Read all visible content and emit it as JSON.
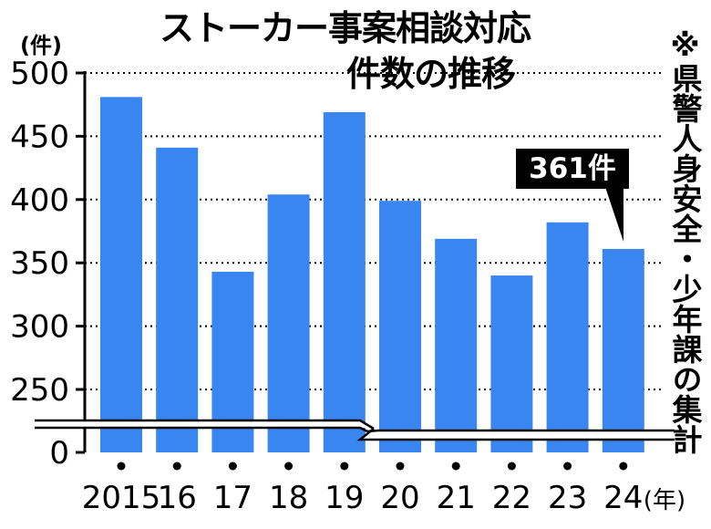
{
  "title": {
    "line1": "ストーカー事案相談対応",
    "line2": "件数の推移"
  },
  "unit": "(件)",
  "note": "※県警人身安全・少年課の集計",
  "callout": "361件",
  "colors": {
    "bar": "#3a86f0",
    "axis": "#000000",
    "grid": "#000000",
    "background": "#ffffff"
  },
  "chart_data": {
    "type": "bar",
    "categories": [
      "2015",
      "16",
      "17",
      "18",
      "19",
      "20",
      "21",
      "22",
      "23",
      "24"
    ],
    "x_unit": "(年)",
    "values": [
      481,
      441,
      343,
      404,
      469,
      399,
      369,
      340,
      382,
      361
    ],
    "yticks": [
      0,
      250,
      300,
      350,
      400,
      450,
      500
    ],
    "ylim": [
      0,
      500
    ],
    "axis_break": "0–250",
    "grid": "dotted horizontal",
    "title": "ストーカー事案相談対応件数の推移",
    "ylabel": "(件)",
    "xlabel": "(年)",
    "annotation": {
      "category": "24",
      "text": "361件"
    }
  }
}
